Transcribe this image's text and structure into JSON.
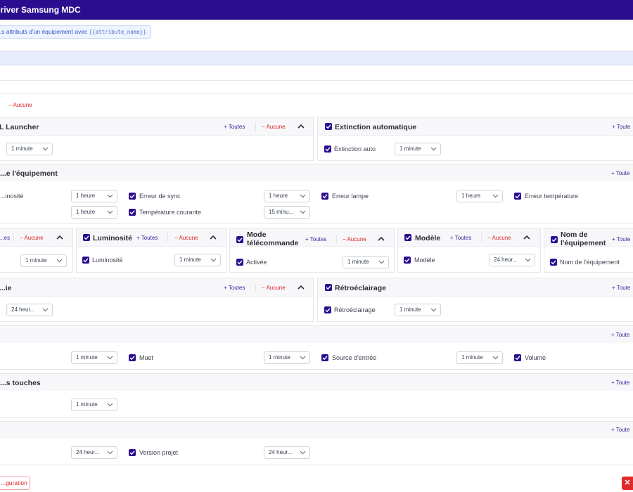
{
  "header": {
    "title": "Driver Samsung MDC"
  },
  "hint": {
    "text": "...s attributs d'un équipement avec ",
    "code": "{{attribute_name}}"
  },
  "labels": {
    "toutes": "Toutes",
    "aucune": "Aucune",
    "toute_cut": "Toute"
  },
  "cards": {
    "launcher": {
      "title": "L Launcher",
      "select": "1 minute"
    },
    "extinction": {
      "title": "Extinction automatique",
      "item": "Extinction auto",
      "select": "1 minute"
    },
    "etat": {
      "title": "...e l'équipement",
      "row1": [
        {
          "label": "...inosité",
          "select": "1 heure"
        },
        {
          "label": "Erreur de sync",
          "select": "1 heure"
        },
        {
          "label": "Erreur lampe",
          "select": "1 heure"
        },
        {
          "label": "Erreur température"
        }
      ],
      "row2": [
        {
          "select": "1 heure"
        },
        {
          "label": "Température courante",
          "select": "15 minu..."
        }
      ]
    },
    "small1": {
      "title_cut": "...es",
      "select": "1 minute"
    },
    "luminosite": {
      "title": "Luminosité",
      "item": "Luminosité",
      "select": "1 minute"
    },
    "telecommande": {
      "title_line1": "Mode",
      "title_line2": "télécommande",
      "item": "Activée",
      "select": "1 minute"
    },
    "modele": {
      "title": "Modèle",
      "item": "Modèle",
      "select": "24 heur..."
    },
    "nom": {
      "title_line1": "Nom de",
      "title_line2": "l'équipement",
      "item": "Nom de l'équipement"
    },
    "serie": {
      "title": "...ie",
      "select": "24 heur..."
    },
    "retro": {
      "title": "Rétroéclairage",
      "item": "Rétroéclairage",
      "select": "1 minute"
    },
    "audio": {
      "items": [
        {
          "select": "1 minute"
        },
        {
          "label": "Muet",
          "select": "1 minute"
        },
        {
          "label": "Source d'entrée",
          "select": "1 minute"
        },
        {
          "label": "Volume"
        }
      ]
    },
    "touches": {
      "title": "...s touches",
      "select": "1 minute"
    },
    "version": {
      "items": [
        {
          "select": "24 heur..."
        },
        {
          "label": "Version projet",
          "select": "24 heur..."
        }
      ]
    }
  },
  "footer": {
    "config_button": "...guration",
    "close_label": "✕"
  },
  "colors": {
    "header": "#2a0e8f",
    "accent": "#3b1e96",
    "danger": "#dc2626",
    "checkbox": "#2a0e8f"
  }
}
